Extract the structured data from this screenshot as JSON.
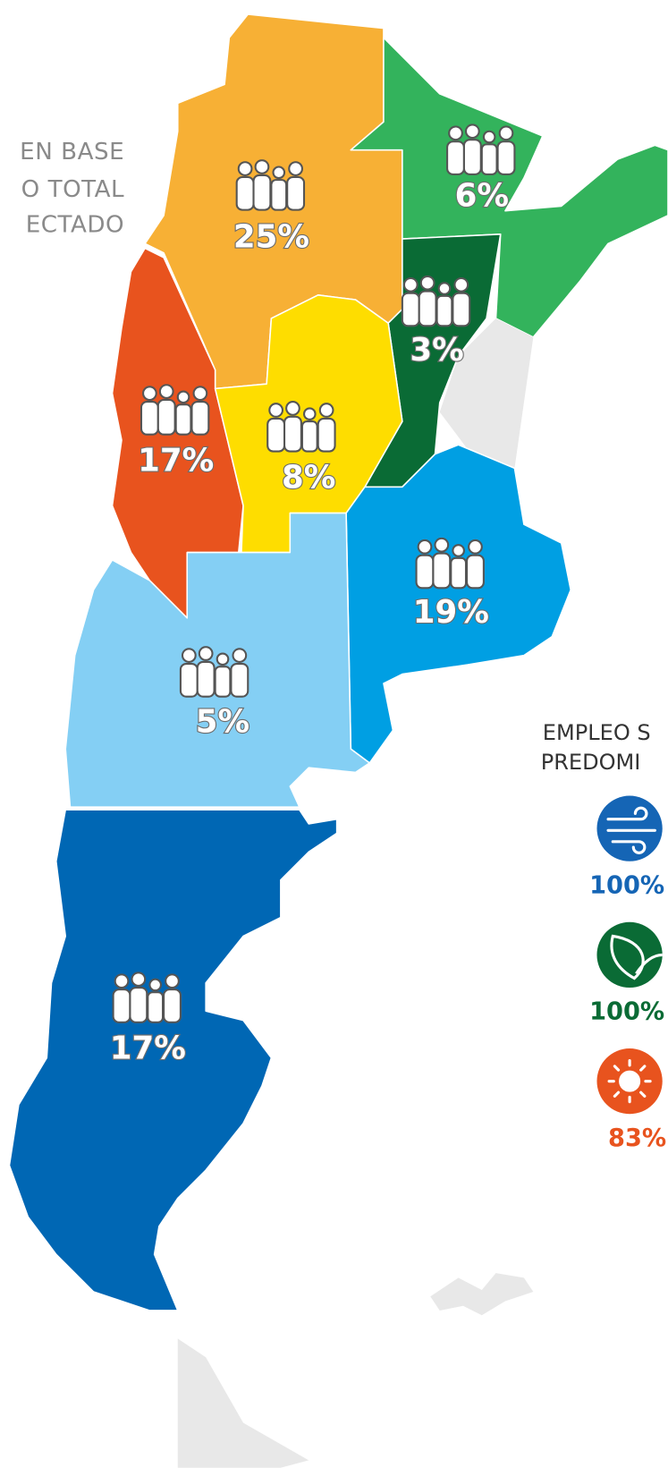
{
  "intro": [
    "EN BASE",
    "O TOTAL",
    "ECTADO"
  ],
  "regions": [
    {
      "label": "25%"
    },
    {
      "label": "6%"
    },
    {
      "label": "3%"
    },
    {
      "label": "17%"
    },
    {
      "label": "8%"
    },
    {
      "label": "19%"
    },
    {
      "label": "5%"
    },
    {
      "label": "17%"
    }
  ],
  "legend": {
    "title": [
      "EMPLEO S",
      "PREDOMI"
    ],
    "items": [
      {
        "label": "100%"
      },
      {
        "label": "100%"
      },
      {
        "label": "83%"
      }
    ]
  }
}
